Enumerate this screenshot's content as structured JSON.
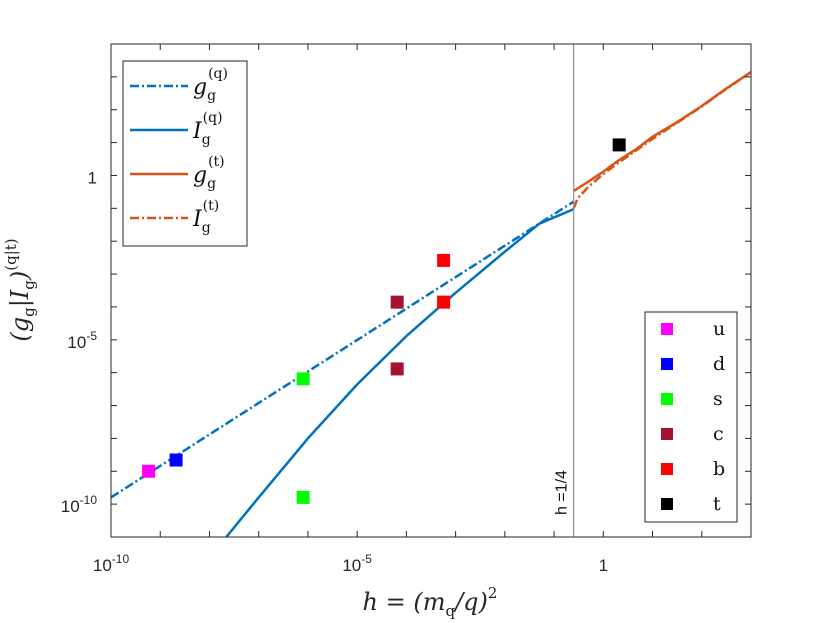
{
  "chart_data": {
    "type": "line",
    "xscale": "log",
    "yscale": "log",
    "xlim": [
      1e-10,
      1000
    ],
    "ylim": [
      1e-11,
      10000.0
    ],
    "x_ticks": [
      {
        "base": "10",
        "exp": "-10",
        "value": 1e-10
      },
      {
        "base": "10",
        "exp": "-5",
        "value": 1e-05
      },
      {
        "base": "1",
        "exp": "",
        "value": 1
      }
    ],
    "y_ticks": [
      {
        "base": "10",
        "exp": "-10",
        "value": 1e-10
      },
      {
        "base": "10",
        "exp": "-5",
        "value": 1e-05
      },
      {
        "base": "1",
        "exp": "",
        "value": 1
      }
    ],
    "xlabel": {
      "text": "h = (m",
      "sub": "q",
      "rest": "/q)",
      "sup": "2"
    },
    "ylabel": {
      "text": "(g",
      "sub1": "g",
      "mid": "|I",
      "sub2": "g",
      "close": ")",
      "sup": "(q|t)"
    },
    "vline": {
      "x": 0.25,
      "label": "h =1/4"
    },
    "series": [
      {
        "name": "g_g^(q)",
        "main": "g",
        "sub": "g",
        "sup": "(q)",
        "color": "#0072BD",
        "style": "dashdot",
        "x": [
          1e-10,
          0.25
        ],
        "y": [
          1.6e-10,
          0.16
        ]
      },
      {
        "name": "I_g^(q)",
        "main": "I",
        "sub": "g",
        "sup": "(q)",
        "color": "#0072BD",
        "style": "solid",
        "x": [
          2.2e-08,
          1e-07,
          1e-06,
          1e-05,
          0.0001,
          0.001,
          0.01,
          0.05,
          0.25
        ],
        "y": [
          1e-11,
          1.6e-10,
          1e-08,
          4.4e-07,
          1.3e-05,
          0.00027,
          0.0048,
          0.034,
          0.095
        ]
      },
      {
        "name": "g_g^(t)",
        "main": "g",
        "sub": "g",
        "sup": "(t)",
        "color": "#D95319",
        "style": "solid",
        "x": [
          0.25,
          0.5,
          1,
          2,
          5,
          10,
          30,
          100,
          300,
          1000
        ],
        "y": [
          0.34,
          0.65,
          1.3,
          2.8,
          6.8,
          15,
          40,
          130,
          420,
          1400
        ]
      },
      {
        "name": "I_g^(t)",
        "main": "I",
        "sub": "g",
        "sup": "(t)",
        "color": "#D95319",
        "style": "dashdot",
        "x": [
          0.25,
          0.3,
          0.5,
          1,
          2,
          5,
          10,
          30,
          100,
          300,
          1000
        ],
        "y": [
          0.1,
          0.2,
          0.46,
          1.1,
          2.4,
          6.2,
          13,
          38,
          125,
          410,
          1400
        ]
      }
    ],
    "markers": [
      {
        "flavor": "u",
        "color": "#FF00FF",
        "points": [
          {
            "x": 5.8e-10,
            "y": 1e-09
          }
        ]
      },
      {
        "flavor": "d",
        "color": "#0000FF",
        "points": [
          {
            "x": 2.1e-09,
            "y": 2.2e-09
          }
        ]
      },
      {
        "flavor": "s",
        "color": "#00FF00",
        "points": [
          {
            "x": 8e-07,
            "y": 1.6e-10
          },
          {
            "x": 8e-07,
            "y": 6.5e-07
          }
        ]
      },
      {
        "flavor": "c",
        "color": "#A2142F",
        "points": [
          {
            "x": 6.5e-05,
            "y": 1.3e-06
          },
          {
            "x": 6.5e-05,
            "y": 0.00014
          }
        ]
      },
      {
        "flavor": "b",
        "color": "#FF0000",
        "points": [
          {
            "x": 0.00057,
            "y": 0.00014
          },
          {
            "x": 0.00057,
            "y": 0.0026
          }
        ]
      },
      {
        "flavor": "t",
        "color": "#000000",
        "points": [
          {
            "x": 2.1,
            "y": 8.5
          }
        ]
      }
    ],
    "legend_position": "top-left",
    "marker_legend_position": "bottom-right",
    "grid": false
  }
}
